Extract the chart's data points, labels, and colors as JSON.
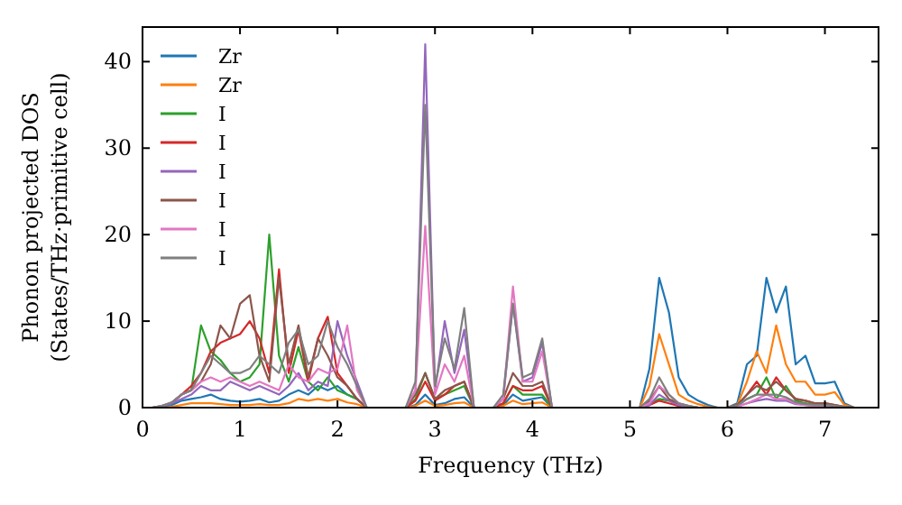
{
  "chart_data": {
    "type": "line",
    "xlabel": "Frequency (THz)",
    "ylabel": "Phonon projected DOS\n(States/THz·primitive cell)",
    "x": [
      0,
      0.1,
      0.2,
      0.3,
      0.4,
      0.5,
      0.6,
      0.7,
      0.8,
      0.9,
      1.0,
      1.1,
      1.2,
      1.3,
      1.4,
      1.5,
      1.6,
      1.7,
      1.8,
      1.9,
      2.0,
      2.1,
      2.2,
      2.3,
      2.4,
      2.5,
      2.6,
      2.7,
      2.8,
      2.9,
      3.0,
      3.1,
      3.2,
      3.3,
      3.4,
      3.5,
      3.6,
      3.7,
      3.8,
      3.9,
      4.0,
      4.1,
      4.2,
      4.3,
      4.4,
      4.5,
      4.6,
      4.7,
      4.8,
      4.9,
      5.0,
      5.1,
      5.2,
      5.3,
      5.4,
      5.5,
      5.6,
      5.7,
      5.8,
      5.9,
      6.0,
      6.1,
      6.2,
      6.3,
      6.4,
      6.5,
      6.6,
      6.7,
      6.8,
      6.9,
      7.0,
      7.1,
      7.2,
      7.3,
      7.4
    ],
    "xlim": [
      0,
      7.55
    ],
    "ylim": [
      0,
      44
    ],
    "xticks": [
      0,
      1,
      2,
      3,
      4,
      5,
      6,
      7
    ],
    "yticks": [
      0,
      10,
      20,
      30,
      40
    ],
    "grid": false,
    "legend": "top left",
    "marker": "none",
    "line_style": "solid",
    "series": [
      {
        "name": "Zr",
        "color": "#1f77b4",
        "values": [
          0,
          0,
          0.1,
          0.3,
          0.8,
          1.0,
          1.2,
          1.5,
          1.0,
          0.8,
          0.7,
          0.8,
          1.0,
          0.6,
          0.8,
          1.5,
          2.0,
          1.5,
          2.5,
          2.0,
          2.5,
          1.5,
          1.0,
          0,
          0,
          0,
          0,
          0,
          0.3,
          1.5,
          0.3,
          0.5,
          1.0,
          1.2,
          0,
          0,
          0,
          0.3,
          1.5,
          0.8,
          1.0,
          1.2,
          0,
          0,
          0,
          0,
          0,
          0,
          0,
          0,
          0,
          0,
          4.5,
          15,
          11,
          3.5,
          1.5,
          0.8,
          0.3,
          0,
          0,
          0.5,
          5,
          6,
          15,
          11,
          14,
          5,
          6,
          2.8,
          2.8,
          3,
          0.5,
          0,
          0
        ]
      },
      {
        "name": "Zr",
        "color": "#ff7f0e",
        "values": [
          0,
          0,
          0,
          0.1,
          0.3,
          0.5,
          0.5,
          0.5,
          0.4,
          0.3,
          0.3,
          0.3,
          0.4,
          0.3,
          0.3,
          0.5,
          1.0,
          0.8,
          1.0,
          0.8,
          1.0,
          0.6,
          0.4,
          0,
          0,
          0,
          0,
          0,
          0.2,
          0.8,
          0.2,
          0.3,
          0.5,
          0.6,
          0,
          0,
          0,
          0.2,
          0.8,
          0.4,
          0.5,
          0.6,
          0,
          0,
          0,
          0,
          0,
          0,
          0,
          0,
          0,
          0,
          2.5,
          8.5,
          5,
          1.5,
          0.8,
          0.4,
          0.1,
          0,
          0,
          0.3,
          3,
          6.5,
          4,
          9.5,
          5,
          3,
          3,
          1.5,
          1.5,
          1.8,
          0.3,
          0,
          0
        ]
      },
      {
        "name": "I",
        "color": "#2ca02c",
        "values": [
          null,
          null,
          null,
          0.6,
          1.5,
          2.0,
          9.5,
          6.5,
          5.5,
          4.0,
          3.0,
          3.5,
          5.0,
          20,
          6.0,
          3.0,
          7.0,
          3.0,
          2.0,
          3.5,
          2.0,
          1.5,
          1.0,
          0,
          0,
          0,
          0,
          0,
          1.0,
          4.0,
          1.0,
          1.5,
          2.0,
          2.5,
          0,
          0,
          0,
          0.5,
          2.5,
          1.5,
          1.5,
          1.5,
          0,
          0,
          0,
          0,
          0,
          0,
          0,
          0,
          0,
          0,
          0.5,
          1.0,
          0.8,
          0.3,
          0.1,
          0,
          0,
          0,
          0,
          0.2,
          1.0,
          1.5,
          3.5,
          1.0,
          2.5,
          0.8,
          0.5,
          0.3,
          0.3,
          null,
          null,
          null,
          null
        ]
      },
      {
        "name": "I",
        "color": "#d62728",
        "values": [
          null,
          null,
          null,
          0.5,
          1.5,
          2.5,
          4.0,
          6.5,
          7.5,
          8.0,
          8.5,
          10,
          8.0,
          4.0,
          16,
          4.0,
          9.0,
          3.0,
          8.0,
          10.5,
          4.0,
          2.5,
          1.0,
          0,
          0,
          0,
          0,
          0,
          0.8,
          3.0,
          0.8,
          1.5,
          2.5,
          3.0,
          0,
          0,
          0,
          0.5,
          2.5,
          2.0,
          2.0,
          2.5,
          0,
          0,
          0,
          0,
          0,
          0,
          0,
          0,
          0,
          0,
          0.3,
          0.8,
          0.5,
          0.2,
          0.1,
          0,
          0,
          0,
          0,
          0.2,
          1.5,
          3,
          1.5,
          3.5,
          2,
          1,
          0.8,
          0.5,
          0.5,
          0.3,
          0.1,
          0,
          0
        ]
      },
      {
        "name": "I",
        "color": "#9467bd",
        "values": [
          0,
          0,
          0.2,
          0.5,
          1.0,
          1.5,
          2.5,
          2.0,
          2.0,
          3.0,
          2.5,
          2.0,
          2.5,
          2.0,
          1.5,
          2.5,
          4.0,
          2.0,
          3.0,
          2.5,
          10,
          6.0,
          3.0,
          0,
          0,
          0,
          0,
          0,
          2.0,
          42,
          2.0,
          10,
          4.0,
          9.0,
          0,
          0,
          0,
          1.0,
          12,
          3.0,
          3.5,
          7.5,
          0,
          0,
          0,
          0,
          0,
          0,
          0,
          0,
          0,
          0,
          0.3,
          1.5,
          0.8,
          0.3,
          0.1,
          0,
          0,
          0,
          0,
          0.1,
          0.5,
          0.8,
          1,
          0.8,
          0.8,
          0.4,
          0.3,
          0.2,
          0.2,
          0.1,
          0,
          null,
          null
        ]
      },
      {
        "name": "I",
        "color": "#8c564b",
        "values": [
          0,
          0,
          0.2,
          0.6,
          1.5,
          2.0,
          3.0,
          5.0,
          9.5,
          8.0,
          12,
          13,
          6.0,
          3.0,
          15,
          5.0,
          9.5,
          3.5,
          8.0,
          6.0,
          3.5,
          2.5,
          1.0,
          0,
          0,
          0,
          0,
          0,
          1.5,
          4.0,
          1.0,
          2.0,
          2.5,
          3.0,
          0,
          0,
          0,
          1.0,
          4.0,
          2.5,
          2.5,
          3.0,
          0,
          0,
          0,
          0,
          0,
          0,
          0,
          0,
          0,
          0,
          0.8,
          2.5,
          1.0,
          0.5,
          0.2,
          0,
          0,
          0,
          0,
          0.3,
          1.5,
          2.5,
          2,
          3,
          2,
          1,
          0.8,
          0.5,
          0.5,
          0.3,
          0.1,
          0,
          0
        ]
      },
      {
        "name": "I",
        "color": "#e377c2",
        "values": [
          0,
          0,
          0.2,
          0.6,
          1.5,
          2.0,
          3.0,
          3.5,
          3.0,
          3.5,
          3.0,
          2.5,
          3.0,
          2.5,
          2.0,
          5.0,
          3.5,
          3.0,
          4.5,
          4.0,
          4.5,
          9.5,
          2.0,
          0,
          0,
          0,
          0,
          0,
          2.0,
          21,
          1.5,
          5,
          3.0,
          6,
          0,
          0,
          0,
          1.0,
          14,
          3.0,
          3.0,
          6.5,
          0,
          0,
          0,
          0,
          0,
          0,
          0,
          0,
          0,
          0,
          0.5,
          2.5,
          1.5,
          0.5,
          0.2,
          0,
          0,
          0,
          0,
          0.1,
          0.5,
          1.0,
          1.5,
          1.0,
          1.0,
          0.5,
          0.3,
          0.2,
          0.2,
          0.1,
          0,
          null,
          null
        ]
      },
      {
        "name": "I",
        "color": "#7f7f7f",
        "values": [
          0,
          0,
          0.2,
          0.6,
          1.5,
          2.0,
          4.0,
          6.0,
          5.0,
          4.0,
          4.0,
          4.5,
          6.0,
          5.0,
          4.0,
          7.5,
          9.0,
          5.0,
          6.0,
          10,
          7.0,
          5.0,
          2.5,
          0,
          0,
          0,
          0,
          0,
          3.0,
          35,
          2.5,
          8,
          4.5,
          11.5,
          0,
          0,
          0,
          1.5,
          12,
          3.5,
          4.0,
          8.0,
          0,
          0,
          0,
          0,
          0,
          0,
          0,
          0,
          0,
          0,
          1.0,
          3.5,
          1.5,
          0.5,
          0.2,
          0,
          0,
          0,
          0,
          0.2,
          1.0,
          1.5,
          1.5,
          1.5,
          1.2,
          0.6,
          0.4,
          0.3,
          0.3,
          0.2,
          0.1,
          0,
          0
        ]
      }
    ]
  }
}
